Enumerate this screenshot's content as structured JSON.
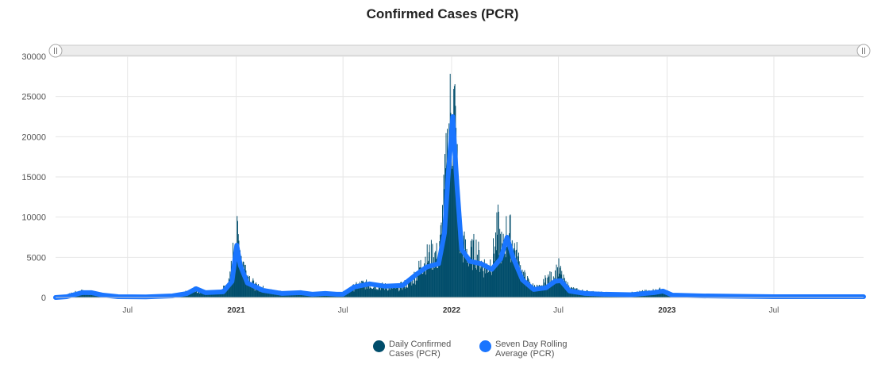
{
  "colors": {
    "bars": "#004d6b",
    "average": "#1a75ff",
    "grid": "#e6e6e6",
    "scrollbar": "#ececec"
  },
  "chart_data": {
    "type": "bar",
    "title": "Confirmed Cases (PCR)",
    "xlabel": "",
    "ylabel": "",
    "ylim": [
      0,
      30000
    ],
    "y_ticks": [
      0,
      5000,
      10000,
      15000,
      20000,
      25000,
      30000
    ],
    "x_range": [
      "2020-03-01",
      "2023-11-30"
    ],
    "x_ticks": [
      {
        "date": "2020-07-01",
        "label": "Jul",
        "major": false
      },
      {
        "date": "2021-01-01",
        "label": "2021",
        "major": true
      },
      {
        "date": "2021-07-01",
        "label": "Jul",
        "major": false
      },
      {
        "date": "2022-01-01",
        "label": "2022",
        "major": true
      },
      {
        "date": "2022-07-01",
        "label": "Jul",
        "major": false
      },
      {
        "date": "2023-01-01",
        "label": "2023",
        "major": true
      },
      {
        "date": "2023-07-01",
        "label": "Jul",
        "major": false
      }
    ],
    "grid": true,
    "legend_position": "bottom",
    "series": [
      {
        "name": "Daily Confirmed Cases (PCR)",
        "type": "bar",
        "points": [
          [
            "2020-03-01",
            20
          ],
          [
            "2020-03-15",
            200
          ],
          [
            "2020-04-01",
            600
          ],
          [
            "2020-04-15",
            800
          ],
          [
            "2020-05-01",
            400
          ],
          [
            "2020-05-15",
            250
          ],
          [
            "2020-06-01",
            120
          ],
          [
            "2020-07-01",
            100
          ],
          [
            "2020-08-01",
            150
          ],
          [
            "2020-09-01",
            250
          ],
          [
            "2020-10-01",
            500
          ],
          [
            "2020-10-20",
            1100
          ],
          [
            "2020-11-05",
            700
          ],
          [
            "2020-12-01",
            600
          ],
          [
            "2020-12-20",
            2000
          ],
          [
            "2020-12-28",
            6800
          ],
          [
            "2021-01-01",
            7600
          ],
          [
            "2021-01-03",
            8200
          ],
          [
            "2021-01-06",
            7000
          ],
          [
            "2021-01-10",
            5200
          ],
          [
            "2021-01-20",
            3000
          ],
          [
            "2021-02-01",
            1500
          ],
          [
            "2021-03-01",
            800
          ],
          [
            "2021-04-01",
            600
          ],
          [
            "2021-05-01",
            500
          ],
          [
            "2021-06-01",
            400
          ],
          [
            "2021-07-01",
            500
          ],
          [
            "2021-07-15",
            1200
          ],
          [
            "2021-08-01",
            1800
          ],
          [
            "2021-09-01",
            1500
          ],
          [
            "2021-10-01",
            1300
          ],
          [
            "2021-10-20",
            2000
          ],
          [
            "2021-11-01",
            3000
          ],
          [
            "2021-11-15",
            5000
          ],
          [
            "2021-12-01",
            5800
          ],
          [
            "2021-12-10",
            5200
          ],
          [
            "2021-12-20",
            14000
          ],
          [
            "2021-12-25",
            20000
          ],
          [
            "2021-12-28",
            23000
          ],
          [
            "2022-01-01",
            24000
          ],
          [
            "2022-01-03",
            26000
          ],
          [
            "2022-01-06",
            23500
          ],
          [
            "2022-01-10",
            16000
          ],
          [
            "2022-01-15",
            8000
          ],
          [
            "2022-01-25",
            6000
          ],
          [
            "2022-02-01",
            5500
          ],
          [
            "2022-02-10",
            6500
          ],
          [
            "2022-02-20",
            4500
          ],
          [
            "2022-03-01",
            4000
          ],
          [
            "2022-03-10",
            5000
          ],
          [
            "2022-03-20",
            9000
          ],
          [
            "2022-03-28",
            6000
          ],
          [
            "2022-04-05",
            9200
          ],
          [
            "2022-04-15",
            7000
          ],
          [
            "2022-05-01",
            3000
          ],
          [
            "2022-05-15",
            1500
          ],
          [
            "2022-06-01",
            1200
          ],
          [
            "2022-06-10",
            2500
          ],
          [
            "2022-06-20",
            2600
          ],
          [
            "2022-07-01",
            3800
          ],
          [
            "2022-07-10",
            2000
          ],
          [
            "2022-07-20",
            1200
          ],
          [
            "2022-08-01",
            900
          ],
          [
            "2022-09-01",
            600
          ],
          [
            "2022-10-01",
            500
          ],
          [
            "2022-11-01",
            550
          ],
          [
            "2022-12-01",
            800
          ],
          [
            "2022-12-20",
            1000
          ],
          [
            "2023-01-01",
            700
          ],
          [
            "2023-01-15",
            350
          ],
          [
            "2023-03-01",
            250
          ],
          [
            "2023-05-01",
            200
          ],
          [
            "2023-07-01",
            150
          ],
          [
            "2023-09-01",
            150
          ],
          [
            "2023-11-30",
            120
          ]
        ]
      },
      {
        "name": "Seven Day Rolling Average (PCR)",
        "type": "line",
        "points": [
          [
            "2020-03-01",
            0
          ],
          [
            "2020-03-20",
            100
          ],
          [
            "2020-04-15",
            600
          ],
          [
            "2020-05-01",
            600
          ],
          [
            "2020-05-20",
            300
          ],
          [
            "2020-06-15",
            100
          ],
          [
            "2020-08-01",
            80
          ],
          [
            "2020-09-15",
            200
          ],
          [
            "2020-10-10",
            500
          ],
          [
            "2020-10-25",
            1100
          ],
          [
            "2020-11-10",
            600
          ],
          [
            "2020-12-10",
            700
          ],
          [
            "2020-12-25",
            2000
          ],
          [
            "2021-01-02",
            6500
          ],
          [
            "2021-01-08",
            4000
          ],
          [
            "2021-01-20",
            1800
          ],
          [
            "2021-02-15",
            900
          ],
          [
            "2021-03-20",
            500
          ],
          [
            "2021-04-20",
            600
          ],
          [
            "2021-05-10",
            400
          ],
          [
            "2021-06-01",
            500
          ],
          [
            "2021-06-20",
            400
          ],
          [
            "2021-07-01",
            400
          ],
          [
            "2021-07-20",
            1300
          ],
          [
            "2021-08-15",
            1700
          ],
          [
            "2021-09-10",
            1400
          ],
          [
            "2021-10-10",
            1500
          ],
          [
            "2021-11-01",
            2800
          ],
          [
            "2021-11-20",
            3800
          ],
          [
            "2021-12-10",
            4200
          ],
          [
            "2021-12-20",
            8000
          ],
          [
            "2021-12-26",
            15000
          ],
          [
            "2022-01-03",
            22500
          ],
          [
            "2022-01-10",
            14000
          ],
          [
            "2022-01-18",
            6000
          ],
          [
            "2022-02-01",
            4500
          ],
          [
            "2022-02-20",
            4200
          ],
          [
            "2022-03-10",
            3500
          ],
          [
            "2022-03-25",
            4800
          ],
          [
            "2022-04-05",
            7500
          ],
          [
            "2022-04-15",
            5000
          ],
          [
            "2022-05-01",
            2200
          ],
          [
            "2022-05-20",
            1000
          ],
          [
            "2022-06-10",
            1200
          ],
          [
            "2022-06-25",
            2000
          ],
          [
            "2022-07-05",
            2100
          ],
          [
            "2022-07-20",
            800
          ],
          [
            "2022-08-15",
            500
          ],
          [
            "2022-09-15",
            400
          ],
          [
            "2022-11-01",
            350
          ],
          [
            "2022-12-10",
            600
          ],
          [
            "2022-12-25",
            800
          ],
          [
            "2023-01-10",
            300
          ],
          [
            "2023-03-01",
            200
          ],
          [
            "2023-05-01",
            150
          ],
          [
            "2023-07-01",
            100
          ],
          [
            "2023-09-01",
            100
          ],
          [
            "2023-11-30",
            100
          ]
        ]
      }
    ]
  }
}
